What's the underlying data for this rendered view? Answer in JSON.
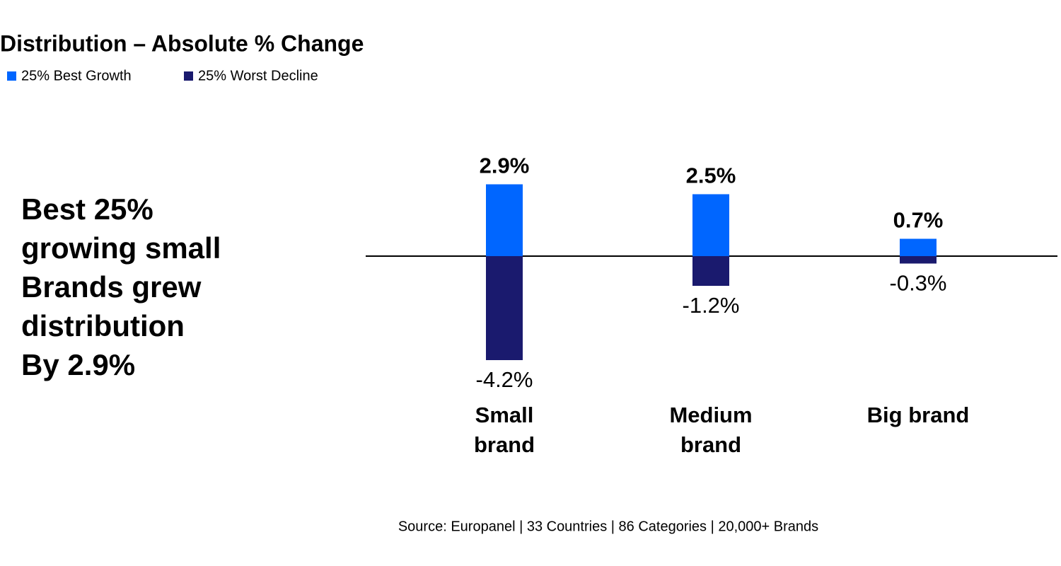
{
  "chart_data": {
    "type": "bar",
    "title": "Distribution – Absolute % Change",
    "categories": [
      "Small brand",
      "Medium brand",
      "Big brand"
    ],
    "series": [
      {
        "name": "25% Best Growth",
        "color": "#0066ff",
        "values": [
          2.9,
          2.5,
          0.7
        ],
        "value_labels": [
          "2.9%",
          "2.5%",
          "0.7%"
        ]
      },
      {
        "name": "25% Worst Decline",
        "color": "#1a1a6e",
        "values": [
          -4.2,
          -1.2,
          -0.3
        ],
        "value_labels": [
          "-4.2%",
          "-1.2%",
          "-0.3%"
        ]
      }
    ],
    "annotation": [
      "Best 25%",
      "growing small",
      "Brands grew",
      "distribution",
      "By 2.9%"
    ],
    "source": "Source: Europanel  | 33 Countries | 86 Categories | 20,000+ Brands"
  }
}
